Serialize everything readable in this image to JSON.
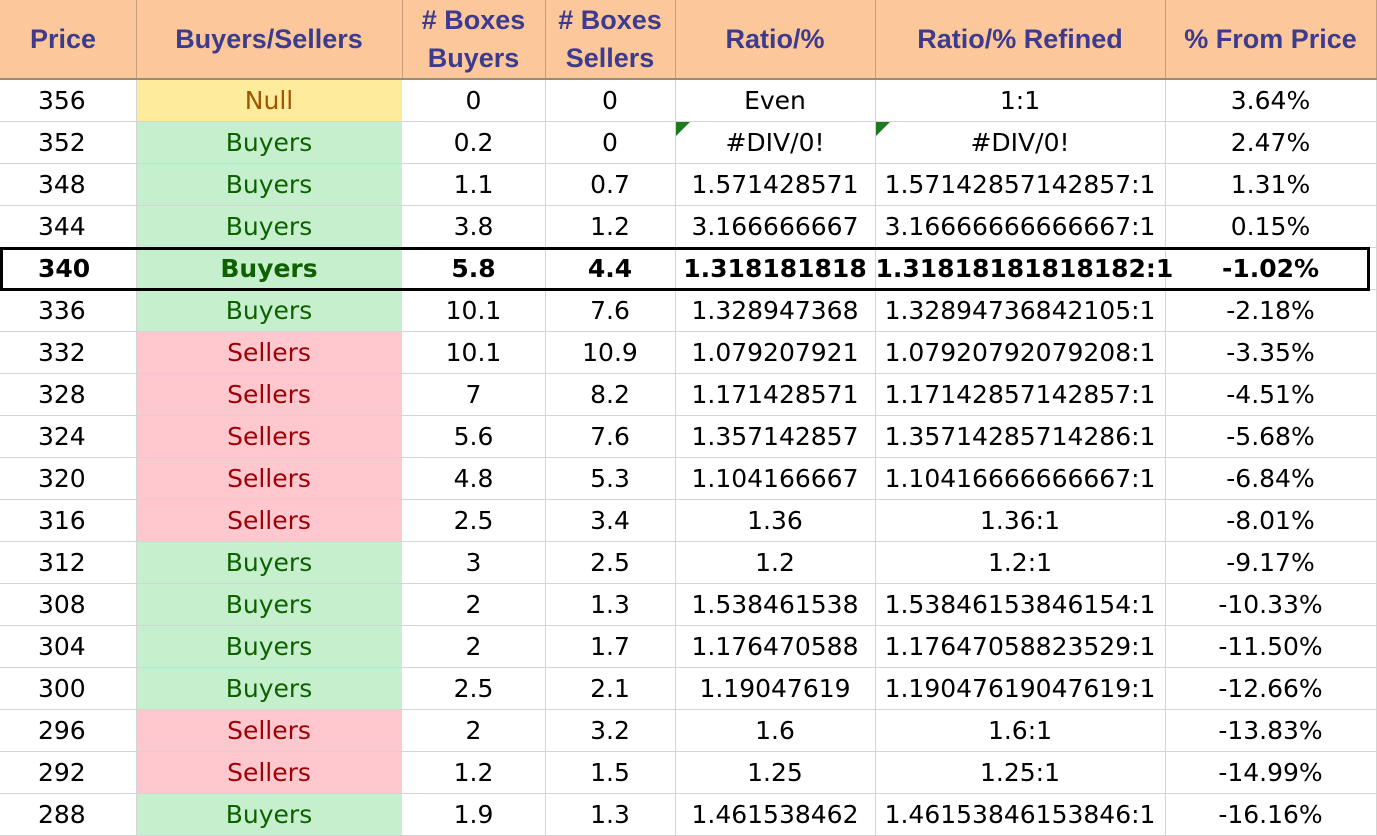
{
  "headers": [
    "Price",
    "Buyers/Sellers",
    "# Boxes Buyers",
    "# Boxes Sellers",
    "Ratio/%",
    "Ratio/% Refined",
    "% From Price"
  ],
  "colors": {
    "header_bg": "#fcc89b",
    "header_text": "#3c3b8e",
    "buyers_bg": "#c6efce",
    "buyers_text": "#0d6100",
    "sellers_bg": "#ffc7ce",
    "sellers_text": "#9c0006",
    "null_bg": "#ffeb9c",
    "null_text": "#9c5700"
  },
  "highlighted_price": "340",
  "rows": [
    {
      "price": "356",
      "side": "Null",
      "buyers": "0",
      "sellers": "0",
      "ratio": "Even",
      "refined": "1:1",
      "pct": "3.64%"
    },
    {
      "price": "352",
      "side": "Buyers",
      "buyers": "0.2",
      "sellers": "0",
      "ratio": "#DIV/0!",
      "refined": "#DIV/0!",
      "pct": "2.47%"
    },
    {
      "price": "348",
      "side": "Buyers",
      "buyers": "1.1",
      "sellers": "0.7",
      "ratio": "1.571428571",
      "refined": "1.57142857142857:1",
      "pct": "1.31%"
    },
    {
      "price": "344",
      "side": "Buyers",
      "buyers": "3.8",
      "sellers": "1.2",
      "ratio": "3.166666667",
      "refined": "3.16666666666667:1",
      "pct": "0.15%"
    },
    {
      "price": "340",
      "side": "Buyers",
      "buyers": "5.8",
      "sellers": "4.4",
      "ratio": "1.318181818",
      "refined": "1.31818181818182:1",
      "pct": "-1.02%"
    },
    {
      "price": "336",
      "side": "Buyers",
      "buyers": "10.1",
      "sellers": "7.6",
      "ratio": "1.328947368",
      "refined": "1.32894736842105:1",
      "pct": "-2.18%"
    },
    {
      "price": "332",
      "side": "Sellers",
      "buyers": "10.1",
      "sellers": "10.9",
      "ratio": "1.079207921",
      "refined": "1.07920792079208:1",
      "pct": "-3.35%"
    },
    {
      "price": "328",
      "side": "Sellers",
      "buyers": "7",
      "sellers": "8.2",
      "ratio": "1.171428571",
      "refined": "1.17142857142857:1",
      "pct": "-4.51%"
    },
    {
      "price": "324",
      "side": "Sellers",
      "buyers": "5.6",
      "sellers": "7.6",
      "ratio": "1.357142857",
      "refined": "1.35714285714286:1",
      "pct": "-5.68%"
    },
    {
      "price": "320",
      "side": "Sellers",
      "buyers": "4.8",
      "sellers": "5.3",
      "ratio": "1.104166667",
      "refined": "1.10416666666667:1",
      "pct": "-6.84%"
    },
    {
      "price": "316",
      "side": "Sellers",
      "buyers": "2.5",
      "sellers": "3.4",
      "ratio": "1.36",
      "refined": "1.36:1",
      "pct": "-8.01%"
    },
    {
      "price": "312",
      "side": "Buyers",
      "buyers": "3",
      "sellers": "2.5",
      "ratio": "1.2",
      "refined": "1.2:1",
      "pct": "-9.17%"
    },
    {
      "price": "308",
      "side": "Buyers",
      "buyers": "2",
      "sellers": "1.3",
      "ratio": "1.538461538",
      "refined": "1.53846153846154:1",
      "pct": "-10.33%"
    },
    {
      "price": "304",
      "side": "Buyers",
      "buyers": "2",
      "sellers": "1.7",
      "ratio": "1.176470588",
      "refined": "1.17647058823529:1",
      "pct": "-11.50%"
    },
    {
      "price": "300",
      "side": "Buyers",
      "buyers": "2.5",
      "sellers": "2.1",
      "ratio": "1.19047619",
      "refined": "1.19047619047619:1",
      "pct": "-12.66%"
    },
    {
      "price": "296",
      "side": "Sellers",
      "buyers": "2",
      "sellers": "3.2",
      "ratio": "1.6",
      "refined": "1.6:1",
      "pct": "-13.83%"
    },
    {
      "price": "292",
      "side": "Sellers",
      "buyers": "1.2",
      "sellers": "1.5",
      "ratio": "1.25",
      "refined": "1.25:1",
      "pct": "-14.99%"
    },
    {
      "price": "288",
      "side": "Buyers",
      "buyers": "1.9",
      "sellers": "1.3",
      "ratio": "1.461538462",
      "refined": "1.46153846153846:1",
      "pct": "-16.16%"
    }
  ]
}
